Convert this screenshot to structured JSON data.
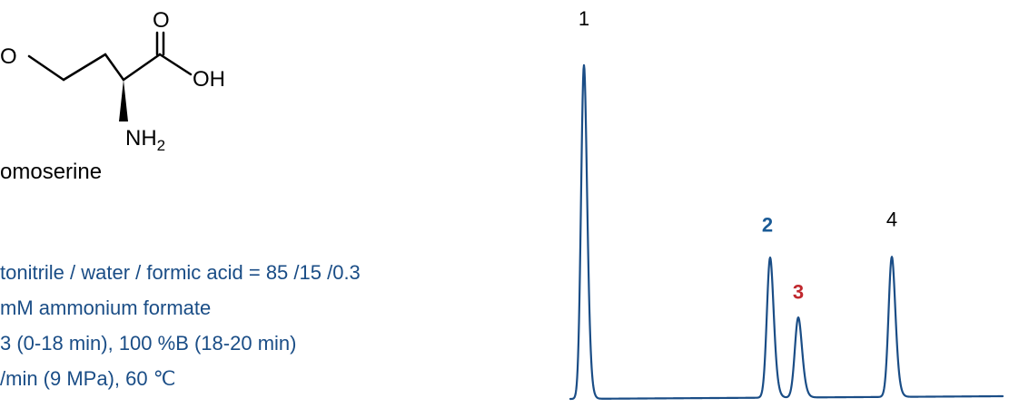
{
  "structure": {
    "atom_O_left": "O",
    "atom_O_carbonyl": "O",
    "atom_OH": "OH",
    "atom_NH": "NH",
    "atom_NH_subscript": "2",
    "compound_label": "omoserine"
  },
  "conditions": {
    "line1": "tonitrile / water / formic acid = 85 /15 /0.3",
    "line2": "mM ammonium formate",
    "line3": "3 (0-18 min), 100 %B (18-20 min)",
    "line4": "/min (9 MPa), 60 ℃"
  },
  "chromatogram": {
    "trace_color": "#1a4d86",
    "peaks": [
      {
        "label": "1",
        "color": "#000000",
        "bold": false,
        "relative_height": 1.0
      },
      {
        "label": "2",
        "color": "#1a5a96",
        "bold": true,
        "relative_height": 0.42
      },
      {
        "label": "3",
        "color": "#c0282e",
        "bold": true,
        "relative_height": 0.24
      },
      {
        "label": "4",
        "color": "#000000",
        "bold": false,
        "relative_height": 0.42
      }
    ]
  }
}
